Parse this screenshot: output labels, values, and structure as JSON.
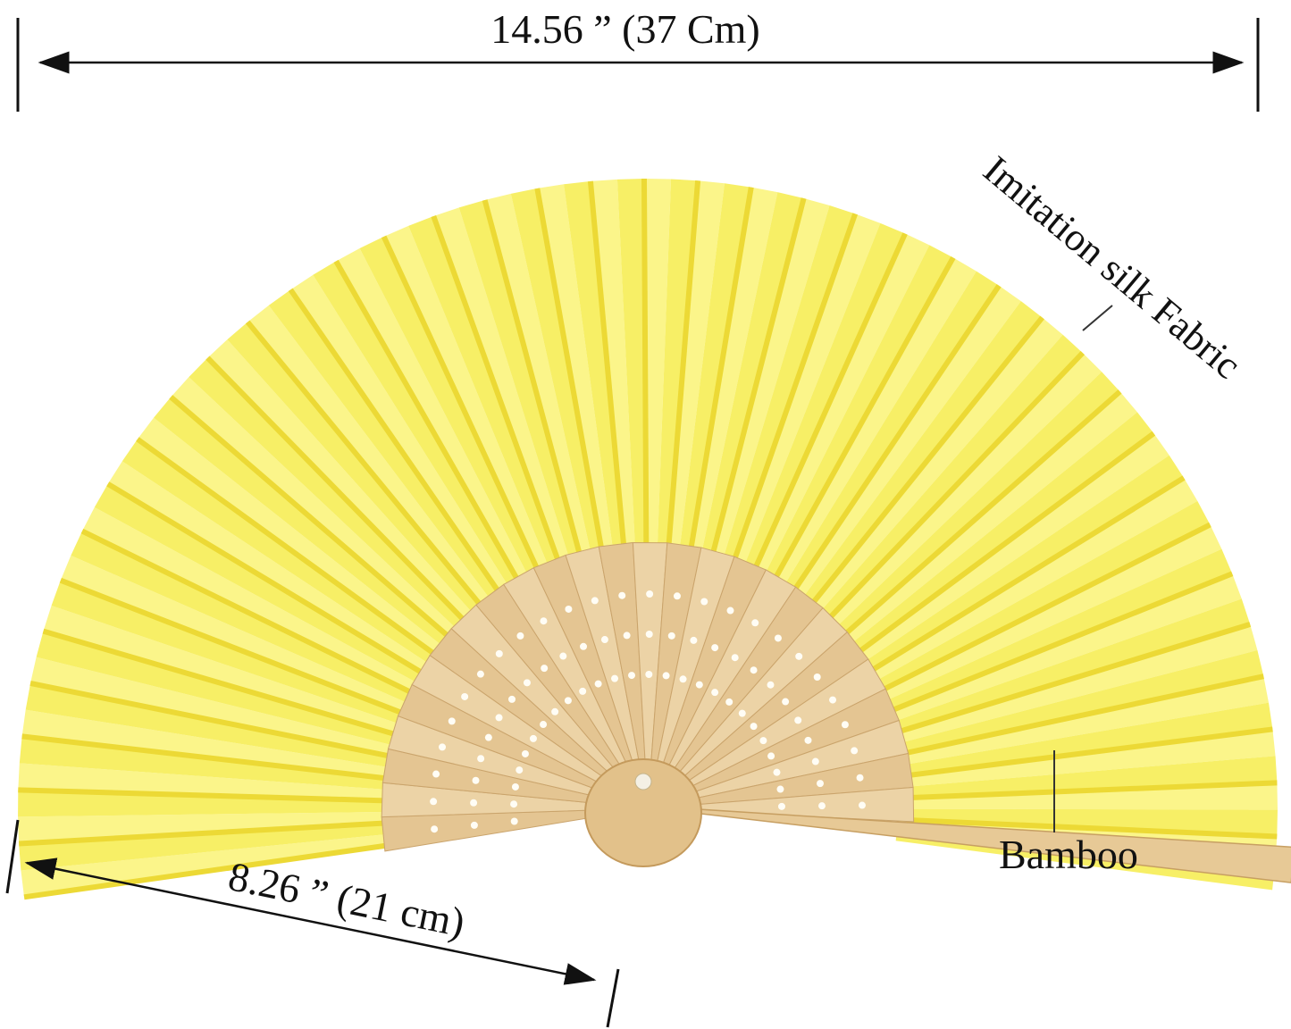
{
  "dimensions": {
    "width": {
      "label": "14.56 ” (37 Cm)"
    },
    "length": {
      "label": "8.26 ” (21 cm)"
    }
  },
  "callouts": {
    "fabric": {
      "label": "Imitation silk Fabric"
    },
    "bamboo": {
      "label": "Bamboo"
    }
  }
}
